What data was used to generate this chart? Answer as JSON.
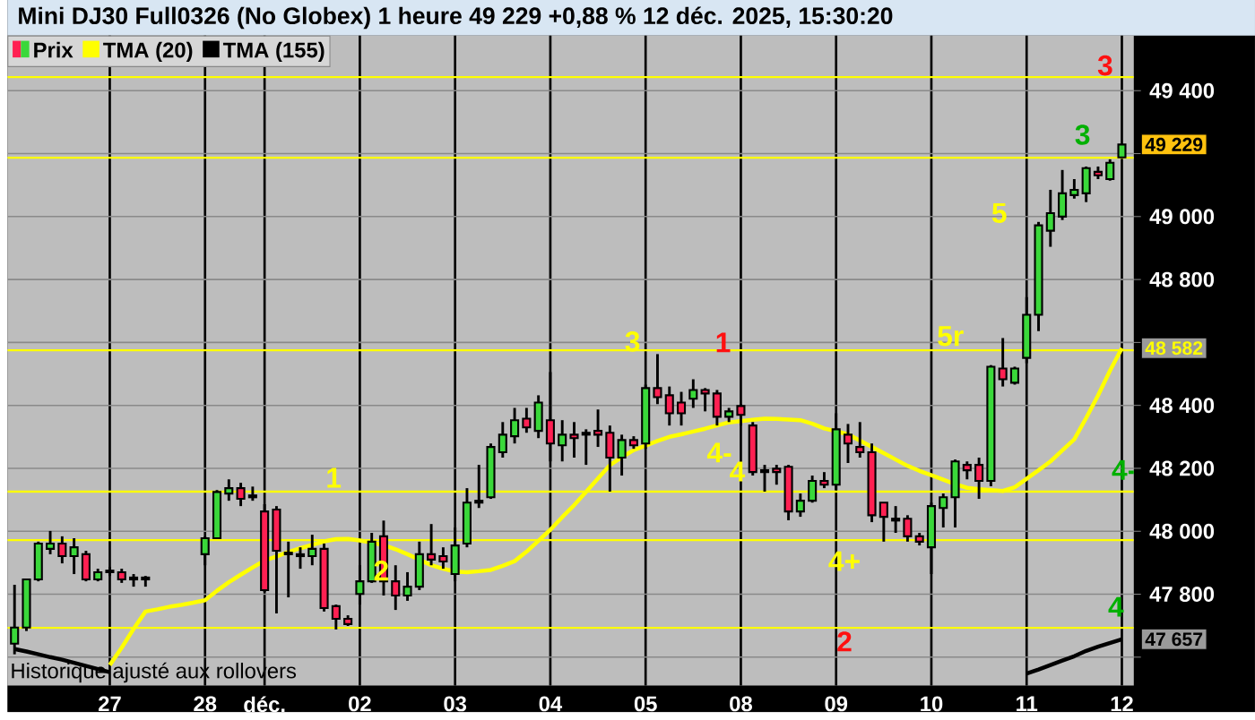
{
  "chart_data": {
    "type": "candlestick",
    "title": "Mini DJ30 Full0326 (No Globex) 1 heure 49 229 +0,88 % 12 déc. 2025, 15:30:20",
    "categories": [
      null,
      null,
      null,
      null,
      null,
      null,
      null,
      null,
      "27",
      null,
      null,
      null,
      null,
      null,
      null,
      null,
      "28",
      null,
      null,
      null,
      null,
      "déc.",
      null,
      null,
      null,
      null,
      null,
      null,
      null,
      "02",
      null,
      null,
      null,
      null,
      null,
      null,
      null,
      "03",
      null,
      null,
      null,
      null,
      null,
      null,
      null,
      "04",
      null,
      null,
      null,
      null,
      null,
      null,
      null,
      "05",
      null,
      null,
      null,
      null,
      null,
      null,
      null,
      "08",
      null,
      null,
      null,
      null,
      null,
      null,
      null,
      "09",
      null,
      null,
      null,
      null,
      null,
      null,
      null,
      "10",
      null,
      null,
      null,
      null,
      null,
      null,
      null,
      "11",
      null,
      null,
      null,
      null,
      null,
      null,
      null,
      "12"
    ],
    "ylim": [
      47510,
      49575
    ],
    "yticks": [
      {
        "value": 47600,
        "label": null
      },
      {
        "value": 47800,
        "label": "47 800"
      },
      {
        "value": 48000,
        "label": "48 000"
      },
      {
        "value": 48200,
        "label": "48 200"
      },
      {
        "value": 48400,
        "label": "48 400"
      },
      {
        "value": 48600,
        "label": null
      },
      {
        "value": 48800,
        "label": "48 800"
      },
      {
        "value": 49000,
        "label": "49 000"
      },
      {
        "value": 49200,
        "label": null
      },
      {
        "value": 49400,
        "label": "49 400"
      }
    ],
    "grid": true,
    "legend": "top left",
    "series": [
      {
        "name": "Prix",
        "ohlc": [
          [
            47643,
            47830,
            47609,
            47694
          ],
          [
            47694,
            47847,
            47683,
            47847
          ],
          [
            47847,
            47967,
            47841,
            47961
          ],
          [
            47944,
            48001,
            47927,
            47961
          ],
          [
            47961,
            47984,
            47898,
            47921
          ],
          [
            47921,
            47978,
            47864,
            47949
          ],
          [
            47927,
            47938,
            47841,
            47847
          ],
          [
            47847,
            47881,
            47841,
            47870
          ],
          [
            47870,
            47887,
            47858,
            47875
          ],
          [
            47870,
            47881,
            47836,
            47847
          ],
          [
            47853,
            47864,
            47824,
            47847
          ],
          [
            47847,
            47858,
            47824,
            47853
          ],
          null,
          null,
          null,
          null,
          [
            47927,
            47984,
            47892,
            47978
          ],
          [
            47978,
            48131,
            47978,
            48125
          ],
          [
            48120,
            48165,
            48097,
            48137
          ],
          [
            48137,
            48154,
            48080,
            48103
          ],
          [
            48114,
            48142,
            48097,
            48108
          ],
          [
            48063,
            48086,
            47807,
            47813
          ],
          [
            48069,
            48080,
            47739,
            47938
          ],
          [
            47932,
            47967,
            47790,
            47927
          ],
          [
            47921,
            47949,
            47881,
            47927
          ],
          [
            47921,
            47989,
            47892,
            47944
          ],
          [
            47944,
            47961,
            47745,
            47756
          ],
          [
            47762,
            47767,
            47688,
            47722
          ],
          [
            47722,
            47733,
            47699,
            47705
          ],
          [
            47801,
            47892,
            47767,
            47841
          ],
          [
            47841,
            47995,
            47836,
            47967
          ],
          [
            47984,
            48034,
            47796,
            47841
          ],
          [
            47841,
            47892,
            47750,
            47796
          ],
          [
            47796,
            47870,
            47779,
            47824
          ],
          [
            47824,
            47967,
            47813,
            47927
          ],
          [
            47927,
            48023,
            47892,
            47910
          ],
          [
            47921,
            47949,
            47881,
            47904
          ],
          [
            47864,
            48012,
            47841,
            47955
          ],
          [
            47961,
            48137,
            47949,
            48091
          ],
          [
            48091,
            48211,
            48074,
            48097
          ],
          [
            48108,
            48279,
            48103,
            48268
          ],
          [
            48251,
            48347,
            48234,
            48307
          ],
          [
            48302,
            48392,
            48279,
            48353
          ],
          [
            48358,
            48392,
            48313,
            48330
          ],
          [
            48319,
            48432,
            48296,
            48409
          ],
          [
            48353,
            48506,
            48222,
            48279
          ],
          [
            48273,
            48353,
            48222,
            48307
          ],
          [
            48307,
            48347,
            48234,
            48296
          ],
          [
            48307,
            48324,
            48211,
            48313
          ],
          [
            48319,
            48387,
            48268,
            48307
          ],
          [
            48313,
            48336,
            48126,
            48234
          ],
          [
            48234,
            48307,
            48177,
            48290
          ],
          [
            48290,
            48302,
            48262,
            48273
          ],
          [
            48279,
            48466,
            48262,
            48455
          ],
          [
            48455,
            48563,
            48404,
            48426
          ],
          [
            48432,
            48460,
            48336,
            48375
          ],
          [
            48409,
            48443,
            48336,
            48375
          ],
          [
            48421,
            48483,
            48392,
            48449
          ],
          [
            48449,
            48455,
            48381,
            48438
          ],
          [
            48438,
            48449,
            48336,
            48364
          ],
          [
            48364,
            48392,
            48347,
            48381
          ],
          [
            48398,
            48404,
            48336,
            48370
          ],
          [
            48336,
            48347,
            48177,
            48188
          ],
          [
            48188,
            48211,
            48126,
            48194
          ],
          [
            48199,
            48211,
            48148,
            48188
          ],
          [
            48205,
            48211,
            48035,
            48063
          ],
          [
            48063,
            48120,
            48046,
            48097
          ],
          [
            48097,
            48177,
            48091,
            48160
          ],
          [
            48160,
            48188,
            48137,
            48148
          ],
          [
            48148,
            48375,
            48131,
            48324
          ],
          [
            48307,
            48341,
            48217,
            48279
          ],
          [
            48268,
            48347,
            48234,
            48251
          ],
          [
            48251,
            48279,
            48029,
            48051
          ],
          [
            48091,
            48091,
            47967,
            48046
          ],
          [
            48040,
            48080,
            47995,
            48034
          ],
          [
            48040,
            48051,
            47967,
            47984
          ],
          [
            47984,
            47995,
            47955,
            47967
          ],
          [
            47949,
            48091,
            47864,
            48080
          ],
          [
            48074,
            48120,
            48012,
            48108
          ],
          [
            48108,
            48228,
            48012,
            48222
          ],
          [
            48211,
            48222,
            48165,
            48194
          ],
          [
            48211,
            48234,
            48103,
            48160
          ],
          [
            48160,
            48528,
            48143,
            48523
          ],
          [
            48517,
            48614,
            48460,
            48483
          ],
          [
            48472,
            48523,
            48466,
            48517
          ],
          [
            48551,
            48744,
            48534,
            48688
          ],
          [
            48688,
            48983,
            48636,
            48972
          ],
          [
            48955,
            49085,
            48904,
            49011
          ],
          [
            49000,
            49148,
            48989,
            49074
          ],
          [
            49068,
            49119,
            49057,
            49085
          ],
          [
            49074,
            49159,
            49046,
            49154
          ],
          [
            49142,
            49159,
            49119,
            49131
          ],
          [
            49119,
            49182,
            49114,
            49171
          ],
          [
            49188,
            49233,
            49188,
            49229
          ]
        ],
        "colors": [
          "#3ad83a",
          "#3ad83a",
          "#3ad83a",
          "#3ad83a",
          "#ff2052",
          "#3ad83a",
          "#ff2052",
          "#3ad83a",
          "#3ad83a",
          "#ff2052",
          "#ff2052",
          "#3ad83a",
          null,
          null,
          null,
          null,
          "#3ad83a",
          "#3ad83a",
          "#3ad83a",
          "#ff2052",
          "#ff2052",
          "#ff2052",
          "#ff2052",
          "#ff2052",
          "#3ad83a",
          "#3ad83a",
          "#ff2052",
          "#ff2052",
          "#ff2052",
          "#3ad83a",
          "#3ad83a",
          "#ff2052",
          "#ff2052",
          "#3ad83a",
          "#3ad83a",
          "#ff2052",
          "#ff2052",
          "#3ad83a",
          "#3ad83a",
          "#3ad83a",
          "#3ad83a",
          "#3ad83a",
          "#3ad83a",
          "#ff2052",
          "#3ad83a",
          "#ff2052",
          "#3ad83a",
          "#ff2052",
          "#3ad83a",
          "#ff2052",
          "#ff2052",
          "#3ad83a",
          "#ff2052",
          "#3ad83a",
          "#ff2052",
          "#ff2052",
          "#ff2052",
          "#3ad83a",
          "#ff2052",
          "#ff2052",
          "#3ad83a",
          "#ff2052",
          "#ff2052",
          "#3ad83a",
          "#ff2052",
          "#ff2052",
          "#3ad83a",
          "#3ad83a",
          "#ff2052",
          "#3ad83a",
          "#ff2052",
          "#ff2052",
          "#ff2052",
          "#ff2052",
          "#ff2052",
          "#ff2052",
          "#ff2052",
          "#3ad83a",
          "#3ad83a",
          "#3ad83a",
          "#ff2052",
          "#ff2052",
          "#3ad83a",
          "#ff2052",
          "#3ad83a",
          "#3ad83a",
          "#3ad83a",
          "#3ad83a",
          "#3ad83a",
          "#3ad83a",
          "#3ad83a",
          "#ff2052",
          "#3ad83a",
          "#3ad83a"
        ]
      },
      {
        "name": "TMA (20)",
        "type": "line",
        "color": "#ffff00",
        "values": [
          null,
          null,
          null,
          null,
          null,
          null,
          null,
          null,
          47575,
          47630,
          47690,
          47745,
          47752,
          47760,
          47766,
          47773,
          47781,
          47811,
          47838,
          47862,
          47885,
          47907,
          47920,
          47934,
          47946,
          47957,
          47968,
          47975,
          47976,
          47971,
          47964,
          47956,
          47943,
          47927,
          47910,
          47892,
          47881,
          47872,
          47870,
          47873,
          47877,
          47890,
          47905,
          47935,
          47970,
          48005,
          48045,
          48083,
          48125,
          48168,
          48210,
          48235,
          48258,
          48272,
          48287,
          48300,
          48308,
          48317,
          48326,
          48336,
          48346,
          48350,
          48354,
          48358,
          48357,
          48355,
          48353,
          48342,
          48327,
          48318,
          48308,
          48288,
          48268,
          48248,
          48228,
          48208,
          48192,
          48178,
          48164,
          48150,
          48138,
          48134,
          48131,
          48128,
          48140,
          48167,
          48194,
          48222,
          48257,
          48292,
          48360,
          48432,
          48510,
          48582
        ]
      },
      {
        "name": "TMA (155)",
        "type": "line",
        "color": "#000000",
        "values": [
          47626,
          47618,
          47609,
          47600,
          47592,
          47582,
          47572,
          47562,
          47552,
          null,
          null,
          null,
          null,
          null,
          null,
          null,
          null,
          null,
          null,
          null,
          null,
          null,
          null,
          null,
          null,
          null,
          null,
          null,
          null,
          null,
          null,
          null,
          null,
          null,
          null,
          null,
          null,
          null,
          null,
          null,
          null,
          null,
          null,
          null,
          null,
          null,
          null,
          null,
          null,
          null,
          null,
          null,
          null,
          null,
          null,
          null,
          null,
          null,
          null,
          null,
          null,
          null,
          null,
          null,
          null,
          null,
          null,
          null,
          null,
          null,
          null,
          null,
          null,
          null,
          null,
          null,
          null,
          null,
          null,
          null,
          null,
          null,
          null,
          null,
          null,
          47548,
          47561,
          47575,
          47589,
          47603,
          47620,
          47633,
          47645,
          47657
        ]
      }
    ],
    "ref_lines": [
      {
        "axis": "y",
        "value": 49443,
        "color": "#ffff00"
      },
      {
        "axis": "y",
        "value": 49187,
        "color": "#ffff00"
      },
      {
        "axis": "y",
        "value": 48575,
        "color": "#ffff00"
      },
      {
        "axis": "y",
        "value": 48126,
        "color": "#ffff00"
      },
      {
        "axis": "y",
        "value": 47972,
        "color": "#ffff00"
      },
      {
        "axis": "y",
        "value": 47693,
        "color": "#ffff00"
      }
    ],
    "annotations": [
      "1",
      "2",
      "3",
      "1",
      "4-",
      "4",
      "4+",
      "2",
      "5r",
      "5",
      "3",
      "3",
      "4-",
      "4",
      "Historique ajusté aux rollovers",
      {
        "text": "49 229",
        "x": "12",
        "y": 49229
      },
      {
        "text": "48 582",
        "x": "12",
        "y": 48582
      },
      {
        "text": "47 657",
        "x": "12",
        "y": 47657
      }
    ]
  }
}
